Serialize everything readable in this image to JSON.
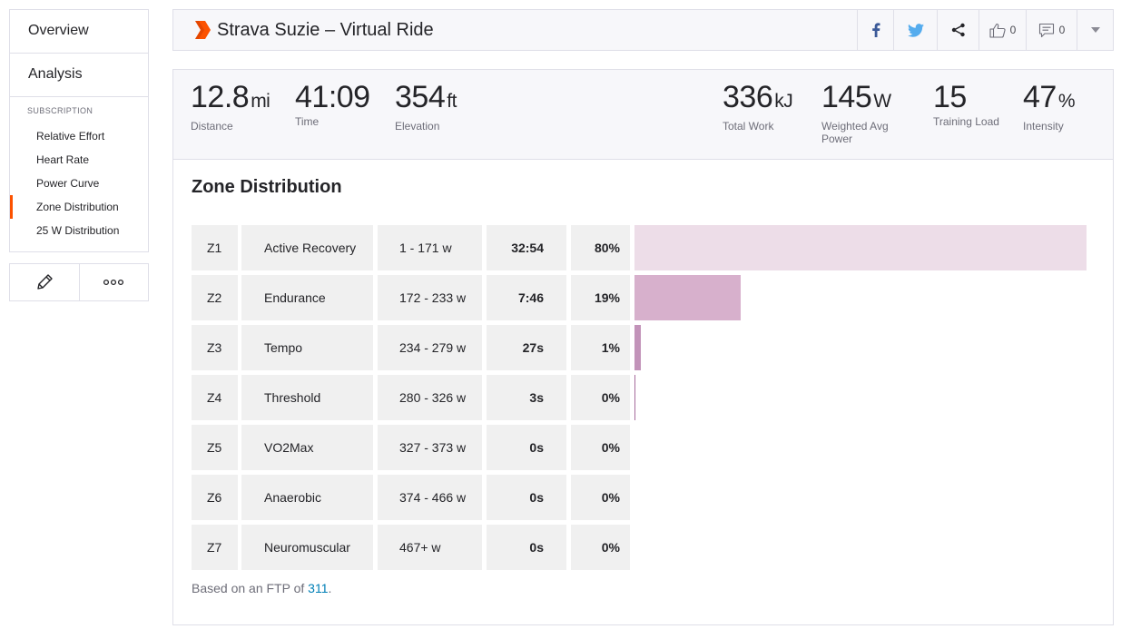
{
  "sidebar": {
    "overview": "Overview",
    "analysis": "Analysis",
    "subscription_heading": "SUBSCRIPTION",
    "items": [
      {
        "label": "Relative Effort"
      },
      {
        "label": "Heart Rate"
      },
      {
        "label": "Power Curve"
      },
      {
        "label": "Zone Distribution",
        "active": true
      },
      {
        "label": "25 W Distribution"
      }
    ],
    "active_color": "#fc5200"
  },
  "header": {
    "title": "Strava Suzie – Virtual Ride",
    "kudos_count": "0",
    "comment_count": "0"
  },
  "stats": {
    "distance": {
      "value": "12.8",
      "unit": "mi",
      "label": "Distance"
    },
    "time": {
      "value": "41:09",
      "label": "Time"
    },
    "elevation": {
      "value": "354",
      "unit": "ft",
      "label": "Elevation"
    },
    "total_work": {
      "value": "336",
      "unit": "kJ",
      "label": "Total Work"
    },
    "weighted_power": {
      "value": "145",
      "unit": "W",
      "label": "Weighted Avg Power"
    },
    "training_load": {
      "value": "15",
      "label": "Training Load"
    },
    "intensity": {
      "value": "47",
      "unit": "%",
      "label": "Intensity"
    }
  },
  "zones": {
    "title": "Zone Distribution",
    "rows": [
      {
        "zone": "Z1",
        "name": "Active Recovery",
        "range": "1 - 171 w",
        "time": "32:54",
        "pct_label": "80%",
        "fraction": 0.8,
        "color": "#eddde8"
      },
      {
        "zone": "Z2",
        "name": "Endurance",
        "range": "172 - 233 w",
        "time": "7:46",
        "pct_label": "19%",
        "fraction": 0.188,
        "color": "#d7b0cc"
      },
      {
        "zone": "Z3",
        "name": "Tempo",
        "range": "234 - 279 w",
        "time": "27s",
        "pct_label": "1%",
        "fraction": 0.011,
        "color": "#c293b9"
      },
      {
        "zone": "Z4",
        "name": "Threshold",
        "range": "280 - 326 w",
        "time": "3s",
        "pct_label": "0%",
        "fraction": 0.0015,
        "color": "#a66b9c"
      },
      {
        "zone": "Z5",
        "name": "VO2Max",
        "range": "327 - 373 w",
        "time": "0s",
        "pct_label": "0%",
        "fraction": 0,
        "color": "#8e4d83"
      },
      {
        "zone": "Z6",
        "name": "Anaerobic",
        "range": "374 - 466 w",
        "time": "0s",
        "pct_label": "0%",
        "fraction": 0,
        "color": "#733566"
      },
      {
        "zone": "Z7",
        "name": "Neuromuscular",
        "range": "467+ w",
        "time": "0s",
        "pct_label": "0%",
        "fraction": 0,
        "color": "#5a2050"
      }
    ],
    "footer_prefix": "Based on an FTP of ",
    "ftp_value": "311",
    "footer_suffix": "."
  },
  "icons": {
    "logo": "strava-chevron-icon",
    "facebook": "facebook-icon",
    "twitter": "twitter-icon",
    "share": "share-icon",
    "kudos": "thumbs-up-icon",
    "comment": "comment-icon",
    "menu": "chevron-down-icon",
    "edit": "pencil-icon",
    "more": "ellipsis-icon"
  }
}
